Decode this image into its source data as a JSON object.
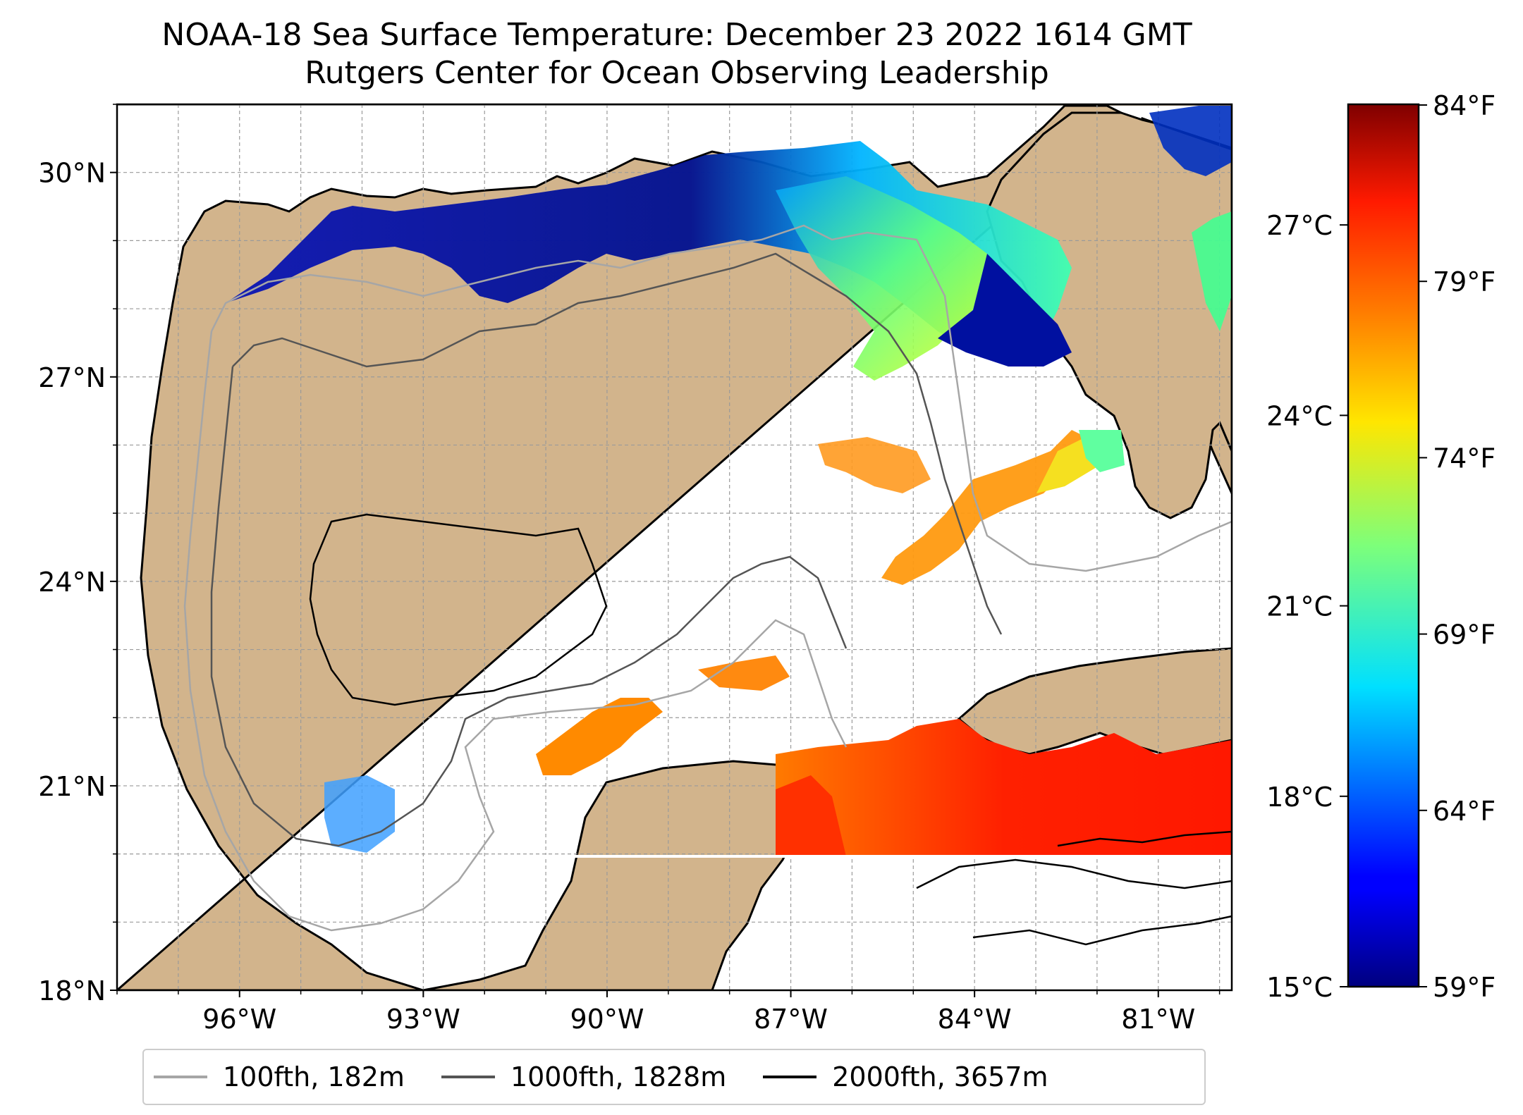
{
  "title": {
    "line1": "NOAA-18 Sea Surface Temperature: December 23 2022 1614 GMT",
    "line2": "Rutgers Center for Ocean Observing Leadership"
  },
  "map": {
    "lon_range": [
      -98.0,
      -79.8
    ],
    "lat_range": [
      18.0,
      31.0
    ],
    "lat_ticks": [
      "30°N",
      "27°N",
      "24°N",
      "21°N",
      "18°N"
    ],
    "lon_ticks": [
      "96°W",
      "93°W",
      "90°W",
      "87°W",
      "84°W",
      "81°W"
    ],
    "gridlines": true,
    "land_color": "#d2b48c",
    "lake_color": "#9bb6e0"
  },
  "colorbar": {
    "colormap": "jet",
    "celsius_ticks": [
      "27°C",
      "24°C",
      "21°C",
      "18°C",
      "15°C"
    ],
    "fahrenheit_ticks": [
      "84°F",
      "79°F",
      "74°F",
      "69°F",
      "64°F",
      "59°F"
    ],
    "range_c": [
      15,
      28.9
    ]
  },
  "legend": [
    {
      "label": "100fth, 182m",
      "color": "#a6a6a6"
    },
    {
      "label": "1000fth, 1828m",
      "color": "#555555"
    },
    {
      "label": "2000fth, 3657m",
      "color": "#000000"
    }
  ]
}
